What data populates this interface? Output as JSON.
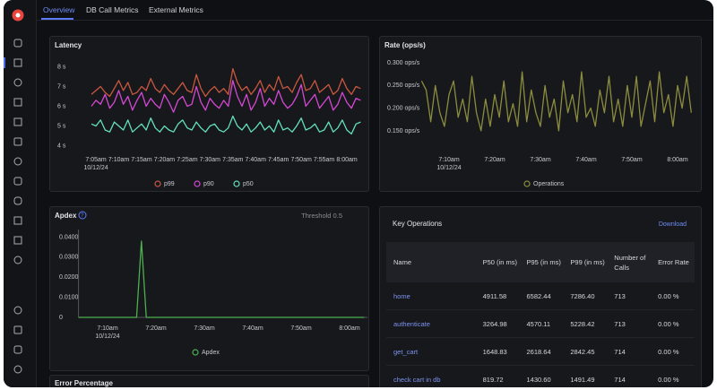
{
  "tabs": [
    "Overview",
    "DB Call Metrics",
    "External Metrics"
  ],
  "chart_data": [
    {
      "type": "line",
      "title": "Latency",
      "categories": [
        null,
        "7:05am",
        null,
        null,
        null,
        null,
        "7:10am",
        null,
        null,
        null,
        null,
        "7:15am",
        null,
        null,
        null,
        null,
        "7:20am",
        null,
        null,
        null,
        null,
        "7:25am",
        null,
        null,
        null,
        null,
        "7:30am",
        null,
        null,
        null,
        null,
        "7:35am",
        null,
        null,
        null,
        null,
        "7:40am",
        null,
        null,
        null,
        null,
        "7:45am",
        null,
        null,
        null,
        null,
        "7:50am",
        null,
        null,
        null,
        null,
        "7:55am",
        null,
        null,
        null,
        null,
        "8:00am",
        null,
        null,
        null
      ],
      "x_date": "10/12/24",
      "ylim": [
        3.8,
        8.2
      ],
      "yticks": [
        {
          "value": 4,
          "label": "4 s"
        },
        {
          "value": 5,
          "label": "5 s"
        },
        {
          "value": 6,
          "label": "6 s"
        },
        {
          "value": 7,
          "label": "7 s"
        },
        {
          "value": 8,
          "label": "8 s"
        }
      ],
      "series": [
        {
          "name": "p99",
          "color": "#c9573f",
          "values": [
            6.6,
            6.8,
            7.0,
            6.7,
            6.5,
            6.9,
            7.3,
            6.8,
            7.2,
            6.6,
            6.7,
            7.0,
            6.8,
            7.4,
            6.9,
            6.7,
            7.1,
            6.8,
            6.6,
            6.9,
            7.2,
            6.8,
            6.7,
            7.6,
            6.9,
            6.5,
            6.8,
            7.0,
            6.7,
            6.9,
            6.6,
            7.9,
            7.2,
            6.8,
            7.0,
            6.6,
            6.9,
            7.3,
            6.7,
            7.1,
            6.8,
            7.5,
            6.9,
            7.0,
            6.7,
            7.2,
            7.6,
            6.8,
            6.9,
            7.3,
            6.7,
            6.9,
            7.1,
            6.6,
            6.8,
            7.4,
            6.9,
            6.6,
            7.0,
            6.9
          ]
        },
        {
          "name": "p90",
          "color": "#d448d4",
          "values": [
            6.0,
            6.3,
            6.1,
            6.6,
            5.9,
            6.2,
            6.8,
            6.1,
            6.5,
            5.8,
            6.3,
            6.7,
            6.0,
            6.4,
            6.1,
            5.9,
            6.6,
            6.2,
            5.7,
            6.3,
            6.5,
            6.0,
            6.1,
            7.0,
            6.2,
            5.8,
            6.4,
            6.1,
            5.9,
            6.3,
            6.0,
            7.3,
            6.5,
            6.0,
            6.6,
            5.8,
            6.2,
            6.9,
            6.0,
            6.4,
            6.1,
            6.8,
            6.2,
            5.9,
            6.1,
            6.5,
            7.1,
            6.0,
            6.3,
            6.6,
            5.9,
            6.2,
            6.5,
            5.8,
            6.1,
            6.7,
            6.2,
            5.9,
            6.4,
            6.3
          ]
        },
        {
          "name": "p50",
          "color": "#63e0bd",
          "values": [
            5.1,
            5.0,
            5.3,
            4.8,
            4.7,
            5.2,
            5.0,
            4.8,
            5.3,
            4.7,
            4.9,
            5.1,
            4.8,
            5.4,
            4.9,
            4.7,
            5.0,
            4.8,
            4.7,
            5.1,
            5.3,
            4.9,
            4.8,
            5.2,
            4.9,
            4.7,
            5.0,
            5.1,
            4.8,
            4.7,
            4.9,
            5.5,
            5.0,
            4.8,
            5.1,
            4.7,
            4.9,
            5.2,
            4.8,
            5.0,
            4.7,
            5.3,
            4.8,
            4.9,
            4.7,
            5.0,
            5.4,
            4.8,
            4.9,
            5.1,
            4.7,
            4.8,
            5.2,
            4.7,
            4.9,
            5.3,
            4.8,
            4.6,
            5.1,
            5.2
          ]
        }
      ]
    },
    {
      "type": "line",
      "title": "Rate (ops/s)",
      "categories": [
        null,
        null,
        null,
        null,
        null,
        null,
        "7:10am",
        null,
        null,
        null,
        null,
        null,
        null,
        null,
        null,
        null,
        "7:20am",
        null,
        null,
        null,
        null,
        null,
        null,
        null,
        null,
        null,
        "7:30am",
        null,
        null,
        null,
        null,
        null,
        null,
        null,
        null,
        null,
        "7:40am",
        null,
        null,
        null,
        null,
        null,
        null,
        null,
        null,
        null,
        "7:50am",
        null,
        null,
        null,
        null,
        null,
        null,
        null,
        null,
        null,
        "8:00am",
        null,
        null,
        null
      ],
      "x_date": "10/12/24",
      "ylim": [
        0.14,
        0.31
      ],
      "yticks": [
        {
          "value": 0.15,
          "label": "0.150 ops/s"
        },
        {
          "value": 0.2,
          "label": "0.200 ops/s"
        },
        {
          "value": 0.25,
          "label": "0.250 ops/s"
        },
        {
          "value": 0.3,
          "label": "0.300 ops/s"
        }
      ],
      "series": [
        {
          "name": "Operations",
          "color": "#8c8c3e",
          "values": [
            0.26,
            0.24,
            0.17,
            0.25,
            0.19,
            0.16,
            0.23,
            0.26,
            0.18,
            0.22,
            0.17,
            0.27,
            0.19,
            0.15,
            0.22,
            0.16,
            0.23,
            0.18,
            0.26,
            0.17,
            0.21,
            0.16,
            0.28,
            0.17,
            0.24,
            0.19,
            0.16,
            0.25,
            0.18,
            0.22,
            0.15,
            0.26,
            0.19,
            0.23,
            0.17,
            0.28,
            0.18,
            0.2,
            0.16,
            0.24,
            0.19,
            0.27,
            0.17,
            0.22,
            0.16,
            0.25,
            0.18,
            0.27,
            0.16,
            0.21,
            0.26,
            0.17,
            0.28,
            0.19,
            0.23,
            0.16,
            0.25,
            0.2,
            0.27,
            0.19
          ]
        }
      ]
    },
    {
      "type": "line",
      "title": "Apdex",
      "annotation": "Threshold 0.5",
      "categories": [
        null,
        null,
        null,
        null,
        null,
        null,
        "7:10am",
        null,
        null,
        null,
        null,
        null,
        null,
        null,
        null,
        null,
        "7:20am",
        null,
        null,
        null,
        null,
        null,
        null,
        null,
        null,
        null,
        "7:30am",
        null,
        null,
        null,
        null,
        null,
        null,
        null,
        null,
        null,
        "7:40am",
        null,
        null,
        null,
        null,
        null,
        null,
        null,
        null,
        null,
        "7:50am",
        null,
        null,
        null,
        null,
        null,
        null,
        null,
        null,
        null,
        "8:00am",
        null,
        null,
        null
      ],
      "x_date": "10/12/24",
      "ylim": [
        0,
        0.042
      ],
      "yticks": [
        0,
        {
          "value": 0.01,
          "label": "0.0100"
        },
        {
          "value": 0.02,
          "label": "0.0200"
        },
        {
          "value": 0.03,
          "label": "0.0300"
        },
        {
          "value": 0.04,
          "label": "0.0400"
        }
      ],
      "series": [
        {
          "name": "Apdex",
          "color": "#4cb050",
          "values": [
            0,
            0,
            0,
            0,
            0,
            0,
            0,
            0,
            0,
            0,
            0,
            0,
            0,
            0.038,
            0,
            0,
            0,
            0,
            0,
            0,
            0,
            0,
            0,
            0,
            0,
            0,
            0,
            0,
            0,
            0,
            0,
            0,
            0,
            0,
            0,
            0,
            0,
            0,
            0,
            0,
            0,
            0,
            0,
            0,
            0,
            0,
            0,
            0,
            0,
            0,
            0,
            0,
            0,
            0,
            0,
            0,
            0,
            0,
            0,
            0
          ]
        }
      ]
    }
  ],
  "key_operations": {
    "title": "Key Operations",
    "download": "Download",
    "columns": [
      "Name",
      "P50 (in ms)",
      "P95 (in ms)",
      "P99 (in ms)",
      "Number of Calls",
      "Error Rate"
    ],
    "rows": [
      [
        "home",
        "4911.58",
        "6582.44",
        "7286.40",
        "713",
        "0.00 %"
      ],
      [
        "authenticate",
        "3264.98",
        "4570.11",
        "5228.42",
        "713",
        "0.00 %"
      ],
      [
        "get_cart",
        "1648.83",
        "2618.64",
        "2842.45",
        "714",
        "0.00 %"
      ],
      [
        "check cart in db",
        "819.72",
        "1430.60",
        "1491.49",
        "714",
        "0.00 %"
      ]
    ]
  },
  "error_panel": {
    "title": "Error Percentage"
  }
}
